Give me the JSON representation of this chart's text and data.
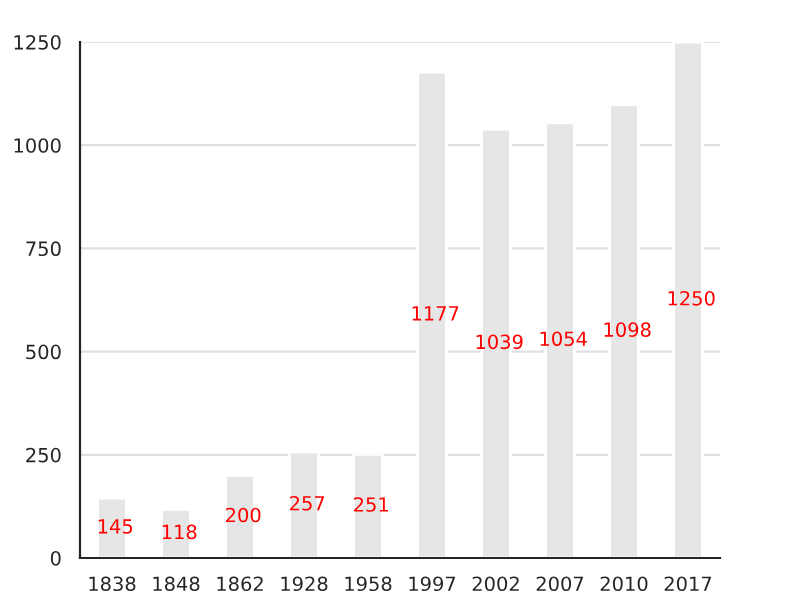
{
  "chart_data": {
    "type": "bar",
    "categories": [
      "1838",
      "1848",
      "1862",
      "1928",
      "1958",
      "1997",
      "2002",
      "2007",
      "2010",
      "2017"
    ],
    "values": [
      145,
      118,
      200,
      257,
      251,
      1177,
      1039,
      1054,
      1098,
      1250
    ],
    "color": "#e6e6e6",
    "data_labels": true,
    "ylim": [
      0,
      1250
    ],
    "yticks": [
      0,
      250,
      500,
      750,
      1000,
      1250
    ],
    "grid": "y"
  }
}
